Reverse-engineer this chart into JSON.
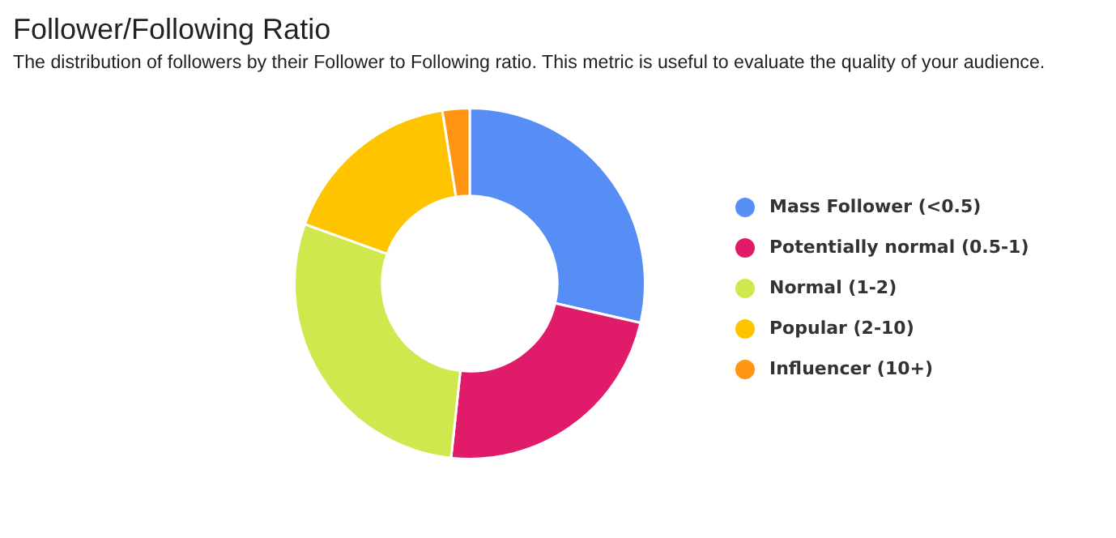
{
  "chart_data": {
    "type": "donut",
    "title": "Follower/Following Ratio",
    "subtitle": "The distribution of followers by their Follower to Following ratio. This metric is useful to evaluate the quality of your audience.",
    "categories": [
      "Mass Follower (<0.5)",
      "Potentially normal (0.5-1)",
      "Normal (1-2)",
      "Popular (2-10)",
      "Influencer (10+)"
    ],
    "values": [
      28.6,
      23.1,
      28.8,
      17.0,
      2.5
    ],
    "colors": [
      "#568ef5",
      "#e01b6a",
      "#d0e84e",
      "#ffc400",
      "#ff9510"
    ],
    "legend": "right"
  }
}
